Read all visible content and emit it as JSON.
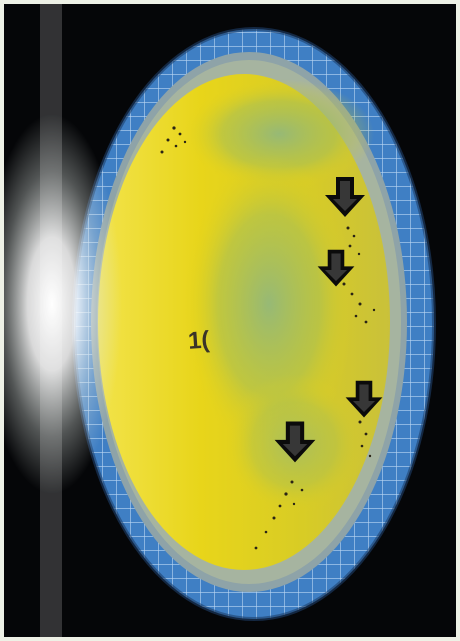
{
  "photo": {
    "plate_label": "1(",
    "colors": {
      "background": "#050608",
      "frame": "#eef1e6",
      "agar_yellow": "#e8d51a",
      "agar_green": "#8bb06a",
      "dish_rim": "#3f7fc4",
      "grid_lines": "#d8ecff",
      "arrow": "#0b0b0b",
      "colony": "#2a2415",
      "glare": "#ffffff"
    },
    "arrow_count": 4,
    "icons": [
      "down-arrow-icon"
    ]
  }
}
